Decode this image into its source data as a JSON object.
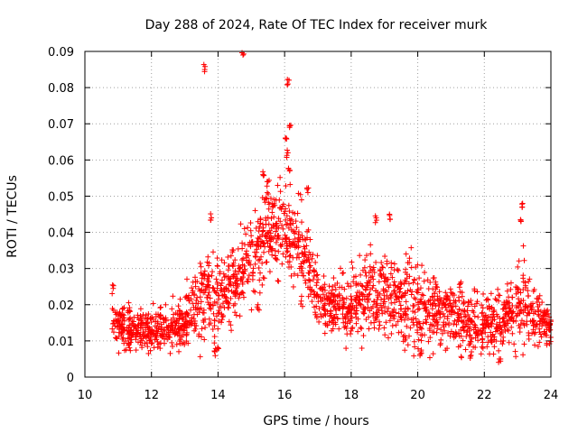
{
  "chart_data": {
    "type": "scatter",
    "title": "Day 288 of 2024, Rate Of TEC Index for receiver murk",
    "xlabel": "GPS time / hours",
    "ylabel": "ROTI / TECUs",
    "xlim": [
      10,
      24
    ],
    "ylim": [
      0,
      0.09
    ],
    "x_ticks": [
      10,
      12,
      14,
      16,
      18,
      20,
      22,
      24
    ],
    "x_tick_labels": [
      "10",
      "12",
      "14",
      "16",
      "18",
      "20",
      "22",
      "24"
    ],
    "y_ticks": [
      0,
      0.01,
      0.02,
      0.03,
      0.04,
      0.05,
      0.06,
      0.07,
      0.08,
      0.09
    ],
    "y_tick_labels": [
      "0",
      "0.01",
      "0.02",
      "0.03",
      "0.04",
      "0.05",
      "0.06",
      "0.07",
      "0.08",
      "0.09"
    ],
    "grid": true,
    "marker": "+",
    "color": "#ff0000",
    "series": [
      {
        "name": "ROTI",
        "profile": [
          {
            "x": 10.8,
            "y": 0.016,
            "spread": 0.004
          },
          {
            "x": 11.5,
            "y": 0.013,
            "spread": 0.004
          },
          {
            "x": 12.5,
            "y": 0.013,
            "spread": 0.004
          },
          {
            "x": 13.0,
            "y": 0.015,
            "spread": 0.005
          },
          {
            "x": 13.5,
            "y": 0.022,
            "spread": 0.008
          },
          {
            "x": 14.0,
            "y": 0.022,
            "spread": 0.007
          },
          {
            "x": 14.5,
            "y": 0.025,
            "spread": 0.007
          },
          {
            "x": 15.0,
            "y": 0.033,
            "spread": 0.008
          },
          {
            "x": 15.5,
            "y": 0.04,
            "spread": 0.008
          },
          {
            "x": 16.0,
            "y": 0.042,
            "spread": 0.009
          },
          {
            "x": 16.5,
            "y": 0.036,
            "spread": 0.008
          },
          {
            "x": 17.0,
            "y": 0.022,
            "spread": 0.006
          },
          {
            "x": 17.5,
            "y": 0.02,
            "spread": 0.006
          },
          {
            "x": 18.0,
            "y": 0.019,
            "spread": 0.006
          },
          {
            "x": 18.5,
            "y": 0.024,
            "spread": 0.008
          },
          {
            "x": 19.0,
            "y": 0.022,
            "spread": 0.008
          },
          {
            "x": 19.5,
            "y": 0.02,
            "spread": 0.008
          },
          {
            "x": 20.0,
            "y": 0.02,
            "spread": 0.008
          },
          {
            "x": 20.5,
            "y": 0.019,
            "spread": 0.007
          },
          {
            "x": 21.0,
            "y": 0.017,
            "spread": 0.006
          },
          {
            "x": 21.5,
            "y": 0.015,
            "spread": 0.006
          },
          {
            "x": 22.0,
            "y": 0.014,
            "spread": 0.006
          },
          {
            "x": 22.5,
            "y": 0.015,
            "spread": 0.006
          },
          {
            "x": 23.0,
            "y": 0.021,
            "spread": 0.008
          },
          {
            "x": 23.5,
            "y": 0.018,
            "spread": 0.006
          },
          {
            "x": 24.0,
            "y": 0.013,
            "spread": 0.003
          }
        ],
        "highlights": [
          {
            "x": 13.6,
            "y": 0.085
          },
          {
            "x": 14.75,
            "y": 0.089
          },
          {
            "x": 16.1,
            "y": 0.081
          },
          {
            "x": 16.15,
            "y": 0.069
          },
          {
            "x": 16.05,
            "y": 0.066
          },
          {
            "x": 16.1,
            "y": 0.062
          },
          {
            "x": 16.15,
            "y": 0.057
          },
          {
            "x": 15.35,
            "y": 0.056
          },
          {
            "x": 15.5,
            "y": 0.054
          },
          {
            "x": 16.7,
            "y": 0.051
          },
          {
            "x": 23.15,
            "y": 0.048
          },
          {
            "x": 13.8,
            "y": 0.044
          },
          {
            "x": 23.1,
            "y": 0.043
          },
          {
            "x": 19.15,
            "y": 0.045
          },
          {
            "x": 18.75,
            "y": 0.044
          },
          {
            "x": 10.85,
            "y": 0.0245
          },
          {
            "x": 13.9,
            "y": 0.007
          },
          {
            "x": 14.0,
            "y": 0.008
          },
          {
            "x": 21.6,
            "y": 0.006
          },
          {
            "x": 22.45,
            "y": 0.005
          },
          {
            "x": 20.1,
            "y": 0.007
          },
          {
            "x": 15.2,
            "y": 0.02
          },
          {
            "x": 16.5,
            "y": 0.021
          }
        ]
      }
    ]
  }
}
